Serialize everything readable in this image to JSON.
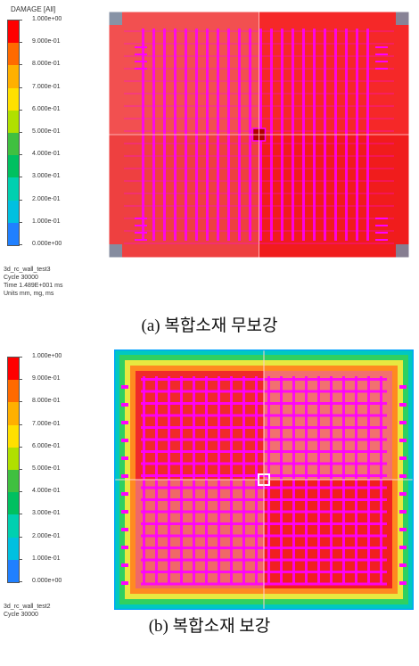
{
  "panel_a": {
    "legend_title": "DAMAGE [All]",
    "ticks": [
      "1.000e+00",
      "9.000e-01",
      "8.000e-01",
      "7.000e-01",
      "6.000e-01",
      "5.000e-01",
      "4.000e-01",
      "3.000e-01",
      "2.000e-01",
      "1.000e-01",
      "0.000e+00"
    ],
    "info": [
      "3d_rc_wall_test3",
      "Cycle 30000",
      "Time 1.489E+001 ms",
      "Units mm, mg, ms"
    ],
    "caption": "(a) 복합소재 무보강"
  },
  "panel_b": {
    "ticks": [
      "1.000e+00",
      "9.000e-01",
      "8.000e-01",
      "7.000e-01",
      "6.000e-01",
      "5.000e-01",
      "4.000e-01",
      "3.000e-01",
      "2.000e-01",
      "1.000e-01",
      "0.000e+00"
    ],
    "info": [
      "3d_rc_wall_test2",
      "Cycle 30000"
    ],
    "caption": "(b) 복합소재 보강"
  },
  "colors": {
    "scale": [
      "#ff0000",
      "#ff6a00",
      "#ffb000",
      "#ffe000",
      "#b0e000",
      "#40c040",
      "#00c060",
      "#00d0b0",
      "#00c0e0",
      "#2080ff",
      "#0000ff"
    ],
    "damage_high": "#ff2a2a",
    "rebar": "#ff00ff"
  }
}
